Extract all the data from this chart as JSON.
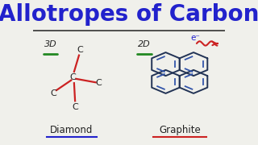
{
  "title": "Allotropes of Carbon",
  "title_color": "#2222cc",
  "title_fontsize": 20,
  "bg_color": "#f0f0eb",
  "label_diamond": "Diamond",
  "label_graphite": "Graphite",
  "label_3d": "3D",
  "label_2d": "2D",
  "label_e": "e⁻",
  "bond_color": "#cc2222",
  "text_color": "#222222",
  "green_color": "#228822",
  "blue_color": "#2222cc",
  "dark_color": "#223355",
  "bond_blue": "#3355aa"
}
